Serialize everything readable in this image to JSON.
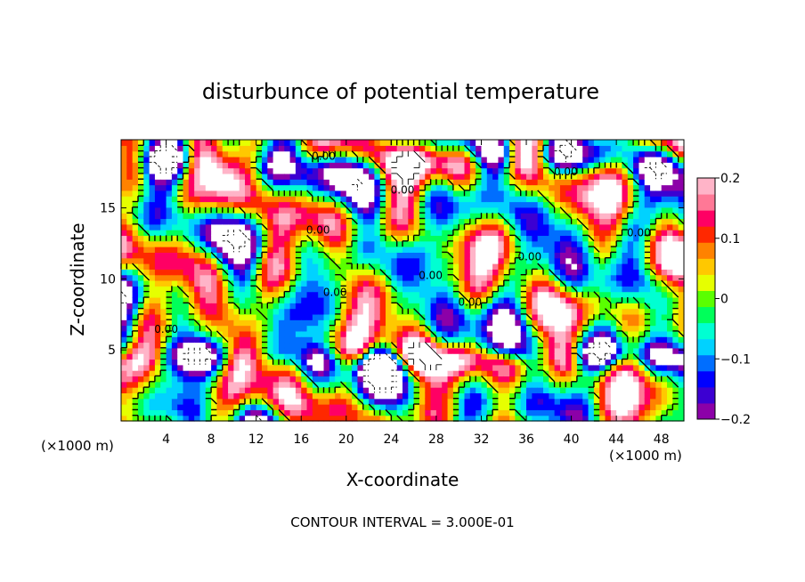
{
  "chart_data": {
    "type": "heatmap",
    "title": "disturbunce of potential temperature",
    "xlabel": "X-coordinate",
    "ylabel": "Z-coordinate",
    "x_unit": "(×1000 m)",
    "x_unit_right": "(×1000 m)",
    "footer": "CONTOUR INTERVAL = 3.000E-01",
    "xlim": [
      0,
      50
    ],
    "ylim": [
      0,
      19.8
    ],
    "x_ticks": [
      4,
      8,
      12,
      16,
      20,
      24,
      28,
      32,
      36,
      40,
      44,
      48
    ],
    "y_ticks": [
      5,
      10,
      15
    ],
    "colorbar": {
      "range": [
        -0.2,
        0.2
      ],
      "ticks": [
        -0.2,
        -0.1,
        0,
        0.1,
        0.2
      ],
      "tick_labels": [
        "−0.2",
        "−0.1",
        "0",
        "0.1",
        "0.2"
      ],
      "colors": [
        "#8c00a8",
        "#3c00d2",
        "#0000ff",
        "#006eff",
        "#00d2ff",
        "#00ffd2",
        "#00ff5a",
        "#5aff00",
        "#e6ff00",
        "#ffc800",
        "#ff8200",
        "#ff2800",
        "#ff0064",
        "#ff7896",
        "#ffb4c8"
      ]
    },
    "contour_interval": 0.3,
    "contour_labels": [
      {
        "text": "0.00",
        "x": 18.0,
        "z": 18.4
      },
      {
        "text": "0.00",
        "x": 25.0,
        "z": 16.0
      },
      {
        "text": "0.00",
        "x": 39.5,
        "z": 17.3
      },
      {
        "text": "0.00",
        "x": 17.5,
        "z": 13.2
      },
      {
        "text": "0.00",
        "x": 36.3,
        "z": 11.3
      },
      {
        "text": "0.00",
        "x": 46.0,
        "z": 13.0
      },
      {
        "text": "0.00",
        "x": 27.5,
        "z": 10.0
      },
      {
        "text": "0.00",
        "x": 19.0,
        "z": 8.8
      },
      {
        "text": "0.00",
        "x": 31.0,
        "z": 8.1
      },
      {
        "text": "0.00",
        "x": 4.0,
        "z": 6.2
      }
    ],
    "field_modes": [
      {
        "amp": 0.09,
        "kx": 0.42,
        "kz": 0.55,
        "p": 0.3
      },
      {
        "amp": 0.07,
        "kx": 0.71,
        "kz": -0.35,
        "p": 1.7
      },
      {
        "amp": 0.06,
        "kx": 0.23,
        "kz": 0.95,
        "p": 2.9
      },
      {
        "amp": 0.05,
        "kx": 1.05,
        "kz": 0.18,
        "p": 4.1
      },
      {
        "amp": 0.05,
        "kx": 0.36,
        "kz": -0.78,
        "p": 5.3
      },
      {
        "amp": 0.04,
        "kx": 0.88,
        "kz": 0.66,
        "p": 0.9
      },
      {
        "amp": 0.04,
        "kx": 0.15,
        "kz": 1.4,
        "p": 3.6
      },
      {
        "amp": 0.035,
        "kx": 1.3,
        "kz": -0.5,
        "p": 2.2
      }
    ]
  }
}
